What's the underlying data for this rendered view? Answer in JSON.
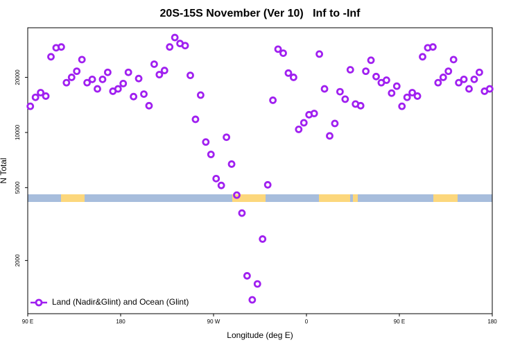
{
  "chart_data": {
    "type": "scatter",
    "title": "20S-15S November (Ver 10)   Inf to -Inf",
    "x_label": "Longitude (deg E)",
    "y_label": "N Total",
    "log_y": true,
    "grid": false,
    "legend_position": "bottom-left",
    "xlim": [
      90,
      540
    ],
    "xticks": [
      {
        "value": 90,
        "label": "90 E"
      },
      {
        "value": 180,
        "label": "180"
      },
      {
        "value": 270,
        "label": "90 W"
      },
      {
        "value": 360,
        "label": "0"
      },
      {
        "value": 450,
        "label": "90 E"
      },
      {
        "value": 540,
        "label": "180"
      }
    ],
    "ylim": [
      1025,
      37300
    ],
    "yticks": [
      2000,
      5000,
      10000,
      20000
    ],
    "series": [
      {
        "name": "Land (Nadir&Glint) and Ocean (Glint)",
        "color": "#a020f0",
        "x": [
          92.5,
          97.5,
          102.5,
          107.5,
          112.5,
          117.5,
          122.5,
          127.5,
          132.5,
          137.5,
          142.5,
          147.5,
          152.5,
          157.5,
          162.5,
          167.5,
          172.5,
          177.5,
          182.5,
          187.5,
          192.5,
          197.5,
          202.5,
          207.5,
          212.5,
          217.5,
          222.5,
          227.5,
          232.5,
          237.5,
          242.5,
          247.5,
          252.5,
          257.5,
          262.5,
          267.5,
          272.5,
          277.5,
          282.5,
          287.5,
          292.5,
          297.5,
          302.5,
          307.5,
          312.5,
          317.5,
          322.5,
          327.5,
          332.5,
          337.5,
          342.5,
          347.5,
          352.5,
          357.5,
          362.5,
          367.5,
          372.5,
          377.5,
          382.5,
          387.5,
          392.5,
          397.5,
          402.5,
          407.5,
          412.5,
          417.5,
          422.5,
          427.5,
          432.5,
          437.5,
          442.5,
          447.5,
          452.5,
          457.5,
          462.5,
          467.5,
          472.5,
          477.5,
          482.5,
          487.5,
          492.5,
          497.5,
          502.5,
          507.5,
          512.5,
          517.5,
          522.5,
          527.5,
          532.5,
          537.5
        ],
        "values": [
          13900,
          15560,
          16500,
          15800,
          25900,
          29000,
          29300,
          18700,
          20000,
          21600,
          25000,
          18700,
          19500,
          17300,
          19500,
          21300,
          16800,
          17300,
          18500,
          21300,
          15700,
          19700,
          16200,
          14000,
          23600,
          20700,
          21800,
          29300,
          33000,
          30600,
          29800,
          20500,
          11800,
          16000,
          8870,
          7590,
          5600,
          5140,
          9420,
          6720,
          4550,
          3630,
          1650,
          1220,
          1490,
          2620,
          5180,
          15000,
          28500,
          27100,
          21100,
          20000,
          10400,
          11300,
          12500,
          12700,
          26800,
          17300,
          9580,
          11200,
          16700,
          15200,
          22000,
          14300,
          14000,
          21600,
          24800,
          20200,
          18700,
          19300,
          16400,
          17900,
          13900,
          15560,
          16500,
          15800,
          25900,
          29000,
          29300,
          18700,
          20000,
          21600,
          25000,
          18700,
          19500,
          17300,
          19500,
          21300,
          16800,
          17300
        ]
      }
    ]
  }
}
